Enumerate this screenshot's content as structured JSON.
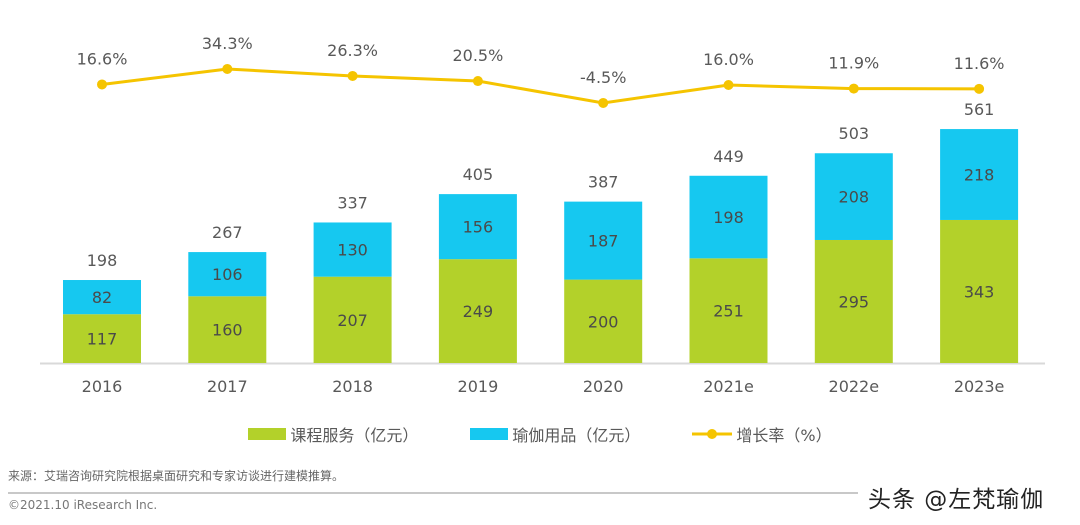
{
  "chart_data": {
    "type": "bar",
    "stacked": true,
    "categories": [
      "2016",
      "2017",
      "2018",
      "2019",
      "2020",
      "2021e",
      "2022e",
      "2023e"
    ],
    "series": [
      {
        "name": "课程服务（亿元）",
        "type": "bar",
        "color": "#b3d12a",
        "values": [
          117,
          160,
          207,
          249,
          200,
          251,
          295,
          343
        ]
      },
      {
        "name": "瑜伽用品（亿元）",
        "type": "bar",
        "color": "#16c8f0",
        "values": [
          82,
          106,
          130,
          156,
          187,
          198,
          208,
          218
        ]
      },
      {
        "name": "增长率（%）",
        "type": "line",
        "color": "#f5c400",
        "values": [
          16.6,
          34.3,
          26.3,
          20.5,
          -4.5,
          16.0,
          11.9,
          11.6
        ]
      }
    ],
    "totals": [
      198,
      267,
      337,
      405,
      387,
      449,
      503,
      561
    ],
    "growth_labels": [
      "16.6%",
      "34.3%",
      "26.3%",
      "20.5%",
      "-4.5%",
      "16.0%",
      "11.9%",
      "11.6%"
    ],
    "grid": false,
    "legend": "bottom"
  },
  "footer": {
    "source": "来源：艾瑞咨询研究院根据桌面研究和专家访谈进行建模推算。",
    "copyright": "©2021.10 iResearch Inc.",
    "watermark": "头条 @左梵瑜伽"
  }
}
